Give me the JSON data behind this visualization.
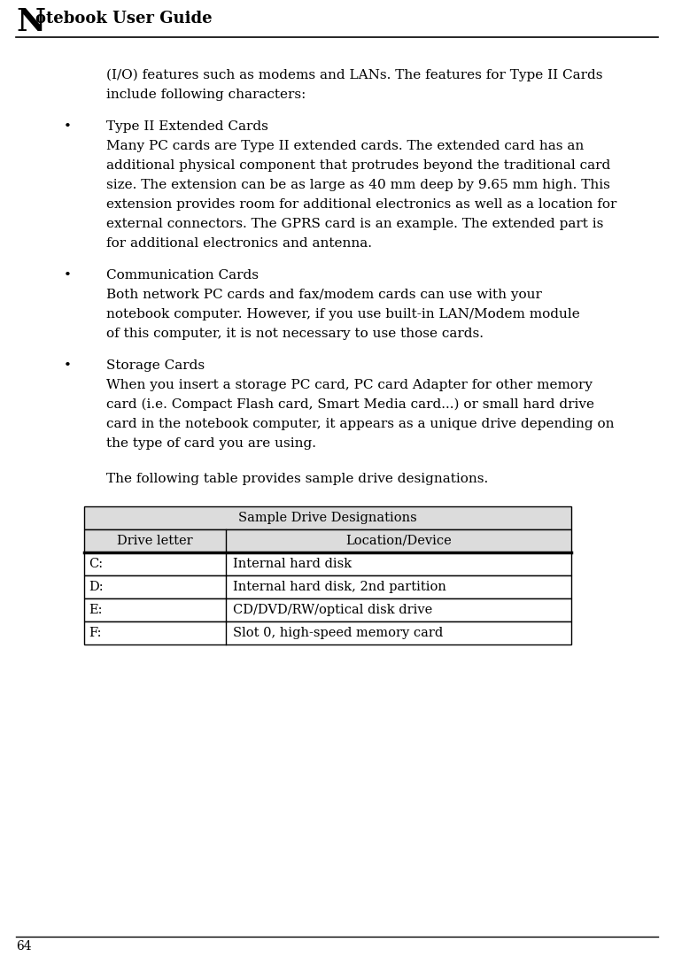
{
  "bg_color": "#ffffff",
  "text_color": "#000000",
  "header_title_big": "N",
  "header_title_rest": "otebook User Guide",
  "page_number": "64",
  "intro_lines": [
    "(I/O) features such as modems and LANs. The features for Type II Cards",
    "include following characters:"
  ],
  "bullets": [
    {
      "title": "Type II Extended Cards",
      "body_lines": [
        "Many PC cards are Type II extended cards. The extended card has an",
        "additional physical component that protrudes beyond the traditional card",
        "size. The extension can be as large as 40 mm deep by 9.65 mm high. This",
        "extension provides room for additional electronics as well as a location for",
        "external connectors. The GPRS card is an example. The extended part is",
        "for additional electronics and antenna."
      ]
    },
    {
      "title": "Communication Cards",
      "body_lines": [
        "Both network PC cards and fax/modem cards can use with your",
        "notebook computer. However, if you use built-in LAN/Modem module",
        "of this computer, it is not necessary to use those cards."
      ]
    },
    {
      "title": "Storage Cards",
      "body_lines": [
        "When you insert a storage PC card, PC card Adapter for other memory",
        "card (i.e. Compact Flash card, Smart Media card...) or small hard drive",
        "card in the notebook computer, it appears as a unique drive depending on",
        "the type of card you are using."
      ]
    }
  ],
  "table_intro": "The following table provides sample drive designations.",
  "table_title": "Sample Drive Designations",
  "table_col_headers": [
    "Drive letter",
    "Location/Device"
  ],
  "table_rows": [
    [
      "C:",
      "Internal hard disk"
    ],
    [
      "D:",
      "Internal hard disk, 2nd partition"
    ],
    [
      "E:",
      "CD/DVD/RW/optical disk drive"
    ],
    [
      "F:",
      "Slot 0, high-speed memory card"
    ]
  ],
  "body_font_size": 11.0,
  "table_font_size": 10.5,
  "font_family": "serif"
}
